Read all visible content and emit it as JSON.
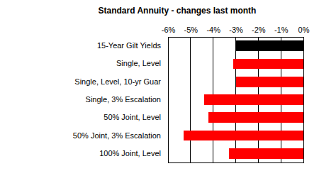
{
  "chart_data": {
    "type": "bar",
    "title": "Standard Annuity - changes last month",
    "orientation": "horizontal",
    "categories": [
      "15-Year Gilt Yields",
      "Single, Level",
      "Single, Level, 10-yr Guar",
      "Single, 3% Escalation",
      "50% Joint, Level",
      "50% Joint, 3% Escalation",
      "100% Joint, Level"
    ],
    "values": [
      -3.0,
      -3.1,
      -3.0,
      -4.4,
      -4.2,
      -5.3,
      -3.3
    ],
    "colors": [
      "#000000",
      "#ff0000",
      "#ff0000",
      "#ff0000",
      "#ff0000",
      "#ff0000",
      "#ff0000"
    ],
    "xlim": [
      -6,
      0
    ],
    "xticks": [
      {
        "value": -6,
        "label": "-6%"
      },
      {
        "value": -5,
        "label": "-5%"
      },
      {
        "value": -4,
        "label": "-4%"
      },
      {
        "value": -3,
        "label": "-3%"
      },
      {
        "value": -2,
        "label": "-2%"
      },
      {
        "value": -1,
        "label": "-1%"
      },
      {
        "value": 0,
        "label": "0%"
      }
    ],
    "grid": true
  }
}
